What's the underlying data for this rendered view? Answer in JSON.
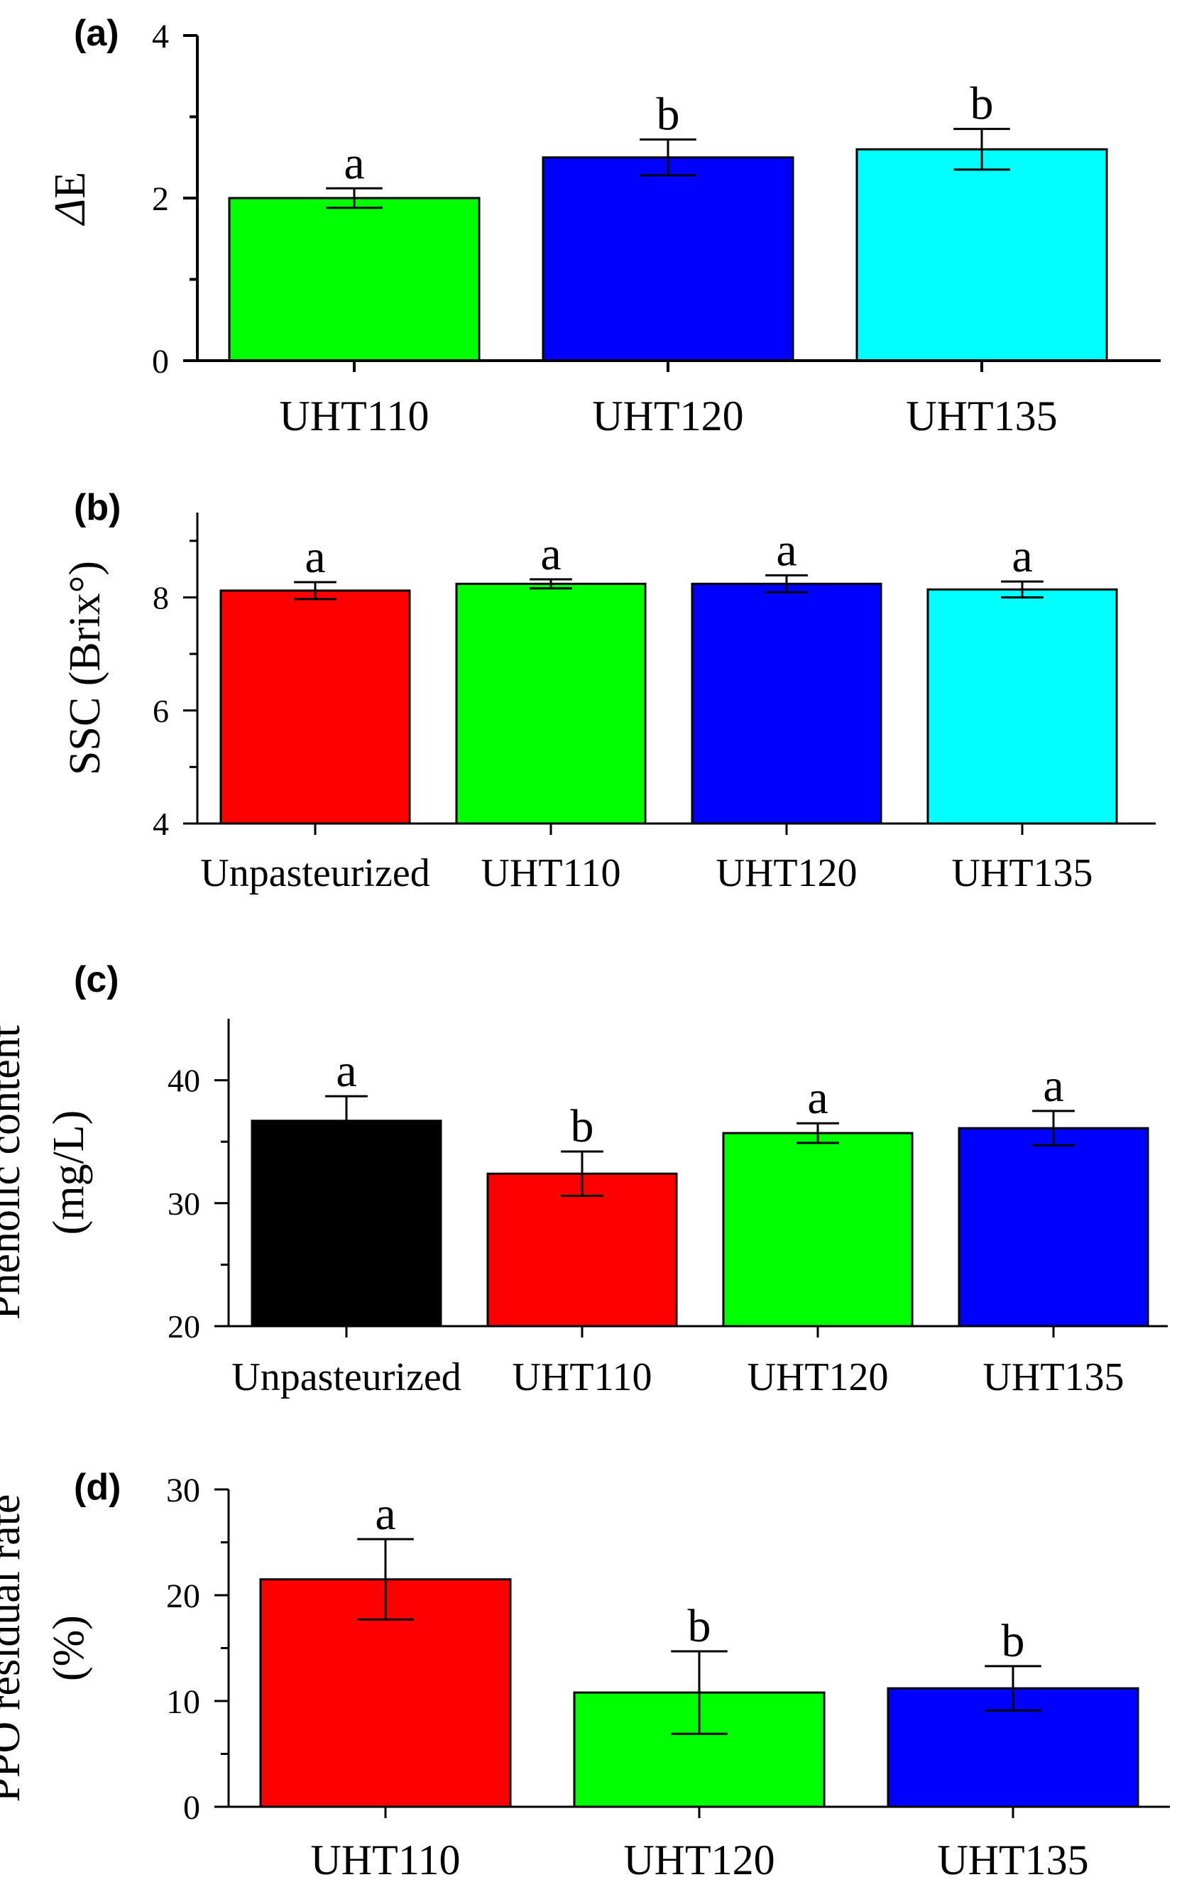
{
  "chart_data": [
    {
      "type": "bar",
      "panel_label": "(a)",
      "ylabel_lines": [
        "ΔE"
      ],
      "ylabel_italic_delta": true,
      "ylim": [
        0,
        4
      ],
      "yticks": [
        0,
        2,
        4
      ],
      "minor_yticks": [
        1,
        3
      ],
      "categories": [
        "UHT110",
        "UHT120",
        "UHT135"
      ],
      "values": [
        2.0,
        2.5,
        2.6
      ],
      "errors": [
        0.12,
        0.22,
        0.25
      ],
      "letters": [
        "a",
        "b",
        "b"
      ],
      "colors": [
        "#00ff00",
        "#0000ff",
        "#00ffff"
      ]
    },
    {
      "type": "bar",
      "panel_label": "(b)",
      "ylabel_lines": [
        "SSC (Brix°)"
      ],
      "ylim": [
        4,
        9.5
      ],
      "yticks": [
        4,
        6,
        8
      ],
      "minor_yticks": [
        5,
        7,
        9
      ],
      "categories": [
        "Unpasteurized",
        "UHT110",
        "UHT120",
        "UHT135"
      ],
      "values": [
        8.12,
        8.24,
        8.24,
        8.14
      ],
      "errors": [
        0.15,
        0.08,
        0.15,
        0.14
      ],
      "letters": [
        "a",
        "a",
        "a",
        "a"
      ],
      "colors": [
        "#ff0000",
        "#00ff00",
        "#0000ff",
        "#00ffff"
      ]
    },
    {
      "type": "bar",
      "panel_label": "(c)",
      "ylabel_lines": [
        "Phenolic content",
        "(mg/L)"
      ],
      "ylim": [
        20,
        45
      ],
      "yticks": [
        20,
        30,
        40
      ],
      "minor_yticks": [
        25,
        35
      ],
      "categories": [
        "Unpasteurized",
        "UHT110",
        "UHT120",
        "UHT135"
      ],
      "values": [
        36.7,
        32.4,
        35.7,
        36.1
      ],
      "errors": [
        2.0,
        1.8,
        0.8,
        1.4
      ],
      "letters": [
        "a",
        "b",
        "a",
        "a"
      ],
      "colors": [
        "#000000",
        "#ff0000",
        "#00ff00",
        "#0000ff"
      ]
    },
    {
      "type": "bar",
      "panel_label": "(d)",
      "ylabel_lines": [
        "PPO residual rate",
        "(%)"
      ],
      "ylim": [
        0,
        30
      ],
      "yticks": [
        0,
        10,
        20,
        30
      ],
      "minor_yticks": [
        5,
        15,
        25
      ],
      "categories": [
        "UHT110",
        "UHT120",
        "UHT135"
      ],
      "values": [
        21.5,
        10.8,
        11.2
      ],
      "errors": [
        3.8,
        3.9,
        2.1
      ],
      "letters": [
        "a",
        "b",
        "b"
      ],
      "colors": [
        "#ff0000",
        "#00ff00",
        "#0000ff"
      ]
    }
  ]
}
